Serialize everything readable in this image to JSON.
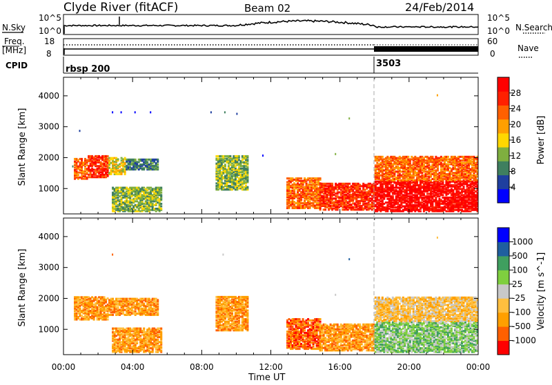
{
  "header": {
    "station": "Clyde River (fitACF)",
    "beam": "Beam 02",
    "date": "24/Feb/2014"
  },
  "top_panels": {
    "nsky_label": "N.Sky",
    "nsky_ticks": [
      "10^5",
      "10^0"
    ],
    "nsearch_label": "N.Search",
    "nsearch_ticks": [
      "10^5",
      "10^0"
    ],
    "freq_label": "Freq.",
    "freq_unit": "[MHz]",
    "freq_ticks": [
      "18",
      "8"
    ],
    "nave_label": "Nave",
    "nave_ticks": [
      "60",
      "0"
    ],
    "cpid_label": "CPID",
    "cpid_entries": [
      {
        "hour": 0.0,
        "label": "rbsp 200"
      },
      {
        "hour": 18.0,
        "label": "3503"
      }
    ]
  },
  "colors": {
    "power_scale": [
      "#0000ff",
      "#1f3f9f",
      "#3f7f5f",
      "#7faf3f",
      "#ffd700",
      "#ff9f00",
      "#ff6000",
      "#ff2000",
      "#ff0000"
    ],
    "velocity_scale": [
      "#ff0000",
      "#ff6000",
      "#ff9f00",
      "#ffbf3f",
      "#c8c8c8",
      "#7fcf3f",
      "#3f9f5f",
      "#1f5f9f",
      "#0000ff"
    ]
  },
  "chart_data": [
    {
      "type": "heatmap",
      "name_shown": "",
      "ylabel": "Slant Range [km]",
      "xlabel": "Time UT",
      "xlim_hours": [
        0,
        24
      ],
      "ylim": [
        180,
        4600
      ],
      "x_ticks": [
        "00:00",
        "04:00",
        "08:00",
        "12:00",
        "16:00",
        "20:00",
        "00:00"
      ],
      "y_ticks": [
        1000,
        2000,
        3000,
        4000
      ],
      "colorbar": {
        "label": "Power [dB]",
        "ticks": [
          "4",
          "8",
          "12",
          "16",
          "20",
          "24",
          "28"
        ]
      },
      "regions": [
        {
          "t0": 0.6,
          "t1": 1.4,
          "r0": 1350,
          "r1": 2000,
          "level": 6
        },
        {
          "t0": 1.4,
          "t1": 2.6,
          "r0": 1400,
          "r1": 2100,
          "level": 7
        },
        {
          "t0": 2.6,
          "t1": 3.6,
          "r0": 1500,
          "r1": 2050,
          "level": 4
        },
        {
          "t0": 3.6,
          "t1": 5.4,
          "r0": 1650,
          "r1": 2000,
          "level": 2
        },
        {
          "t0": 2.8,
          "t1": 5.6,
          "r0": 300,
          "r1": 1100,
          "level": 3
        },
        {
          "t0": 8.8,
          "t1": 10.6,
          "r0": 1000,
          "r1": 2100,
          "level": 3
        },
        {
          "t0": 12.9,
          "t1": 14.8,
          "r0": 400,
          "r1": 1400,
          "level": 6
        },
        {
          "t0": 14.8,
          "t1": 18.0,
          "r0": 350,
          "r1": 1200,
          "level": 7
        },
        {
          "t0": 18.0,
          "t1": 24.0,
          "r0": 300,
          "r1": 1300,
          "level": 8
        },
        {
          "t0": 18.0,
          "t1": 24.0,
          "r0": 1300,
          "r1": 2100,
          "level": 6
        }
      ],
      "sparse": [
        {
          "t": 0.5,
          "r": 1750,
          "level": 2
        },
        {
          "t": 2.8,
          "r": 3500,
          "level": 0
        },
        {
          "t": 3.3,
          "r": 3500,
          "level": 0
        },
        {
          "t": 4.1,
          "r": 3500,
          "level": 0
        },
        {
          "t": 5.0,
          "r": 3500,
          "level": 0
        },
        {
          "t": 8.5,
          "r": 3500,
          "level": 1
        },
        {
          "t": 9.3,
          "r": 3500,
          "level": 2
        },
        {
          "t": 10.0,
          "r": 3450,
          "level": 1
        },
        {
          "t": 16.5,
          "r": 3300,
          "level": 3
        },
        {
          "t": 21.6,
          "r": 4050,
          "level": 5
        },
        {
          "t": 0.9,
          "r": 2900,
          "level": 1
        },
        {
          "t": 11.5,
          "r": 2100,
          "level": 0
        },
        {
          "t": 15.7,
          "r": 2150,
          "level": 3
        }
      ]
    },
    {
      "type": "heatmap",
      "name_shown": "",
      "ylabel": "Slant Range [km]",
      "xlabel": "Time UT",
      "xlim_hours": [
        0,
        24
      ],
      "ylim": [
        180,
        4600
      ],
      "x_ticks": [
        "00:00",
        "04:00",
        "08:00",
        "12:00",
        "16:00",
        "20:00",
        "00:00"
      ],
      "y_ticks": [
        1000,
        2000,
        3000,
        4000
      ],
      "colorbar": {
        "label": "Velocity [m s^-1]",
        "ticks": [
          "-1000",
          "-500",
          "-100",
          "-25",
          "25",
          "100",
          "500",
          "1000"
        ]
      },
      "regions": [
        {
          "t0": 0.6,
          "t1": 2.6,
          "r0": 1350,
          "r1": 2100,
          "level": 2
        },
        {
          "t0": 2.6,
          "t1": 5.4,
          "r0": 1500,
          "r1": 2050,
          "level": 2
        },
        {
          "t0": 2.8,
          "t1": 5.6,
          "r0": 300,
          "r1": 1100,
          "level": 2
        },
        {
          "t0": 8.8,
          "t1": 10.6,
          "r0": 1000,
          "r1": 2100,
          "level": 2
        },
        {
          "t0": 12.9,
          "t1": 14.8,
          "r0": 400,
          "r1": 1400,
          "level": 1
        },
        {
          "t0": 14.8,
          "t1": 18.0,
          "r0": 350,
          "r1": 1200,
          "level": 2
        },
        {
          "t0": 18.0,
          "t1": 24.0,
          "r0": 300,
          "r1": 1300,
          "level": 5
        },
        {
          "t0": 18.0,
          "t1": 24.0,
          "r0": 1300,
          "r1": 2100,
          "level": 3
        }
      ],
      "sparse": [
        {
          "t": 2.8,
          "r": 3450,
          "level": 1
        },
        {
          "t": 9.2,
          "r": 3450,
          "level": 4
        },
        {
          "t": 16.5,
          "r": 3300,
          "level": 7
        },
        {
          "t": 21.6,
          "r": 4000,
          "level": 3
        },
        {
          "t": 15.7,
          "r": 2150,
          "level": 4
        }
      ]
    }
  ]
}
